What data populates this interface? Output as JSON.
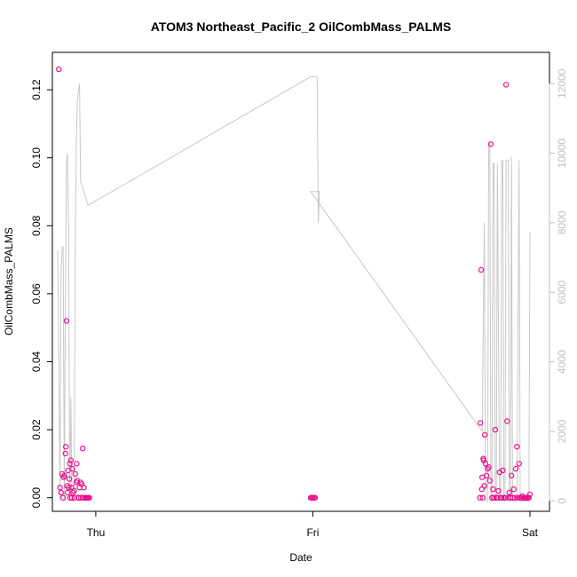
{
  "chart_data": {
    "type": "scatter",
    "title": "ATOM3 Northeast_Pacific_2 OilCombMass_PALMS",
    "xlabel": "Date",
    "ylabel": "OilCombMass_PALMS",
    "x_tick_labels": [
      "Thu",
      "Fri",
      "Sat"
    ],
    "x_tick_positions_days": [
      0,
      1,
      2
    ],
    "xlim_days": [
      -0.2,
      2.09
    ],
    "ylim": [
      -0.004,
      0.131
    ],
    "y_ticks": [
      "0.00",
      "0.02",
      "0.04",
      "0.06",
      "0.08",
      "0.10",
      "0.12"
    ],
    "y_tick_values": [
      0,
      0.02,
      0.04,
      0.06,
      0.08,
      0.1,
      0.12
    ],
    "right_axis": {
      "ylim": [
        -300,
        12900
      ],
      "ticks": [
        "0",
        "2000",
        "4000",
        "6000",
        "8000",
        "10000",
        "12000"
      ],
      "tick_values": [
        0,
        2000,
        4000,
        6000,
        8000,
        10000,
        12000
      ],
      "color": "#c0c0c0"
    },
    "grid": false,
    "colors": {
      "points": "#e8108a",
      "altitude_line": "#c8c8c8"
    },
    "series": [
      {
        "marker": "open-circle",
        "x": [
          -0.17,
          -0.165,
          -0.16,
          -0.155,
          -0.15,
          -0.148,
          -0.145,
          -0.14,
          -0.138,
          -0.135,
          -0.132,
          -0.13,
          -0.128,
          -0.125,
          -0.122,
          -0.12,
          -0.118,
          -0.115,
          -0.112,
          -0.11,
          -0.108,
          -0.105,
          -0.1,
          -0.098,
          -0.095,
          -0.09,
          -0.088,
          -0.085,
          -0.08,
          -0.078,
          -0.075,
          -0.07,
          -0.068,
          -0.065,
          -0.06,
          -0.058,
          -0.055,
          -0.05,
          -0.048,
          -0.045,
          -0.04,
          -0.038,
          -0.035,
          -0.03,
          0.99,
          0.995,
          1.0,
          1.005,
          1.01,
          1.77,
          1.772,
          1.775,
          1.778,
          1.78,
          1.782,
          1.785,
          1.787,
          1.79,
          1.792,
          1.795,
          1.8,
          1.805,
          1.81,
          1.815,
          1.82,
          1.825,
          1.83,
          1.835,
          1.84,
          1.845,
          1.85,
          1.855,
          1.86,
          1.865,
          1.87,
          1.875,
          1.88,
          1.885,
          1.89,
          1.895,
          1.9,
          1.905,
          1.91,
          1.915,
          1.92,
          1.925,
          1.93,
          1.935,
          1.94,
          1.945,
          1.95,
          1.955,
          1.96,
          1.965,
          1.97,
          1.975,
          1.98,
          1.985,
          1.99,
          1.995,
          2.0
        ],
        "y": [
          0.126,
          0.003,
          0.0015,
          0.007,
          0.0,
          0.006,
          0.0065,
          0.013,
          0.015,
          0.052,
          0.0035,
          0.0015,
          0.008,
          0.003,
          0.0055,
          0.01,
          0.0,
          0.011,
          0.003,
          0.0,
          0.0085,
          0.0015,
          0.002,
          0.0,
          0.007,
          0.0045,
          0.01,
          0.005,
          0.0,
          0.0,
          0.003,
          0.0045,
          0.0,
          0.004,
          0.0145,
          0.0,
          0.003,
          0.0,
          0.0,
          0.0,
          0.0,
          0.0,
          0.0,
          0.0,
          0.0,
          0.0,
          0.0,
          0.0,
          0.0,
          0.0,
          0.022,
          0.067,
          0.0025,
          0.006,
          0.0,
          0.0115,
          0.011,
          0.0035,
          0.0185,
          0.01,
          0.0065,
          0.0085,
          0.009,
          0.005,
          0.104,
          0.0,
          0.0025,
          0.0,
          0.02,
          0.0,
          0.0,
          0.002,
          0.0075,
          0.0,
          0.0,
          0.008,
          0.0,
          0.0,
          0.1215,
          0.0225,
          0.0,
          0.0015,
          0.0,
          0.0065,
          0.0,
          0.0025,
          0.0,
          0.0085,
          0.015,
          0.0,
          0.01,
          0.0,
          0.0,
          0.0005,
          0.0,
          0.0,
          0.0,
          0.0,
          0.0,
          0.0,
          0.001
        ]
      },
      {
        "marker": "line",
        "axis": "right",
        "x": [
          -0.175,
          -0.165,
          -0.16,
          -0.155,
          -0.15,
          -0.145,
          -0.14,
          -0.135,
          -0.13,
          -0.125,
          -0.12,
          -0.115,
          -0.11,
          -0.105,
          -0.1,
          -0.095,
          -0.09,
          -0.085,
          -0.08,
          -0.075,
          -0.07,
          -0.065,
          -0.06,
          -0.055,
          -0.05,
          -0.045,
          -0.04,
          -0.035,
          0.99,
          1.02,
          1.025,
          1.03,
          1.035,
          0.99,
          1.78,
          1.79,
          1.795,
          1.8,
          1.805,
          1.81,
          1.815,
          1.82,
          1.825,
          1.83,
          1.835,
          1.84,
          1.845,
          1.85,
          1.86,
          1.865,
          1.87,
          1.875,
          1.88,
          1.885,
          1.89,
          1.9,
          1.905,
          1.91,
          1.915,
          1.92,
          1.93,
          1.94,
          1.95,
          1.955,
          1.96,
          1.965,
          1.97,
          1.975,
          1.98,
          1.985,
          1.99,
          1.995,
          2.0,
          2.005
        ],
        "y": [
          7200,
          0,
          6500,
          7300,
          7300,
          0,
          6000,
          9800,
          10000,
          7800,
          0,
          3000,
          0,
          0,
          0,
          7000,
          10200,
          11500,
          11800,
          12000,
          9200,
          9100,
          9000,
          8900,
          8800,
          8700,
          8600,
          8500,
          12200,
          12200,
          8000,
          8900,
          8900,
          8900,
          2000,
          8000,
          0,
          0,
          0,
          10300,
          10200,
          0,
          0,
          9700,
          9700,
          0,
          0,
          9700,
          0,
          0,
          9800,
          9800,
          0,
          0,
          9800,
          9800,
          0,
          0,
          9900,
          0,
          0,
          0,
          9800,
          0,
          0,
          0,
          0,
          0,
          0,
          0,
          0,
          0,
          7700,
          7700
        ]
      }
    ]
  }
}
